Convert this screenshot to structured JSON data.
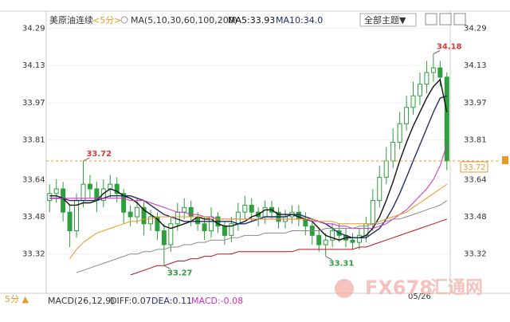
{
  "chart_data": {
    "type": "candlestick",
    "header": {
      "instrument": "美原油连续",
      "period": "<5分>",
      "ma_label": "MA(5,10,30,60,100,200)",
      "ma5": "MA5:33.93",
      "ma10": "MA10:34.0",
      "theme_button": "全部主题▼"
    },
    "footer": {
      "period": "5分 ▲",
      "macd_label": "MACD(26,12,9)",
      "diff": "DIFF:0.07",
      "dea": "DEA:0.11",
      "macd": "MACD:-0.08",
      "date": "05/26"
    },
    "watermark": {
      "brand": "FX678",
      "site": "汇通网"
    },
    "ylim": [
      33.23,
      34.35
    ],
    "yticks": [
      34.29,
      34.13,
      33.97,
      33.81,
      33.64,
      33.48,
      33.32
    ],
    "up_color": "#d43a3a",
    "down_color": "#2e9e3e",
    "open": [
      33.55,
      33.58,
      33.6,
      33.5,
      33.42,
      33.55,
      33.62,
      33.6,
      33.55,
      33.6,
      33.62,
      33.58,
      33.5,
      33.48,
      33.52,
      33.45,
      33.48,
      33.42,
      33.36,
      33.45,
      33.5,
      33.52,
      33.48,
      33.45,
      33.42,
      33.48,
      33.44,
      33.4,
      33.45,
      33.5,
      33.53,
      33.5,
      33.48,
      33.52,
      33.5,
      33.46,
      33.48,
      33.5,
      33.47,
      33.44,
      33.4,
      33.36,
      33.38,
      33.42,
      33.4,
      33.38,
      33.37,
      33.4,
      33.45,
      33.55,
      33.65,
      33.72,
      33.8,
      33.88,
      33.95,
      34.0,
      34.05,
      34.1,
      34.12,
      34.08
    ],
    "high": [
      33.62,
      33.64,
      33.63,
      33.53,
      33.58,
      33.72,
      33.66,
      33.63,
      33.64,
      33.66,
      33.65,
      33.6,
      33.53,
      33.56,
      33.55,
      33.51,
      33.5,
      33.45,
      33.48,
      33.54,
      33.56,
      33.55,
      33.5,
      33.48,
      33.52,
      33.5,
      33.46,
      33.48,
      33.54,
      33.57,
      33.56,
      33.52,
      33.55,
      33.55,
      33.52,
      33.51,
      33.53,
      33.53,
      33.5,
      33.47,
      33.43,
      33.41,
      33.45,
      33.45,
      33.43,
      33.41,
      33.43,
      33.48,
      33.6,
      33.7,
      33.78,
      33.86,
      33.93,
      34.0,
      34.06,
      34.1,
      34.15,
      34.18,
      34.15,
      34.1
    ],
    "low": [
      33.5,
      33.54,
      33.46,
      33.35,
      33.39,
      33.52,
      33.56,
      33.5,
      33.52,
      33.56,
      33.54,
      33.45,
      33.44,
      33.45,
      33.4,
      33.42,
      33.38,
      33.27,
      33.33,
      33.42,
      33.47,
      33.44,
      33.42,
      33.38,
      33.39,
      33.41,
      33.36,
      33.37,
      33.42,
      33.47,
      33.46,
      33.44,
      33.45,
      33.47,
      33.43,
      33.43,
      33.45,
      33.44,
      33.4,
      33.36,
      33.33,
      33.31,
      33.35,
      33.37,
      33.35,
      33.34,
      33.34,
      33.37,
      33.42,
      33.52,
      33.62,
      33.69,
      33.77,
      33.85,
      33.92,
      33.96,
      34.01,
      34.06,
      34.04,
      33.68
    ],
    "close": [
      33.58,
      33.6,
      33.5,
      33.42,
      33.55,
      33.62,
      33.6,
      33.55,
      33.6,
      33.62,
      33.58,
      33.5,
      33.48,
      33.52,
      33.45,
      33.48,
      33.42,
      33.36,
      33.45,
      33.5,
      33.52,
      33.48,
      33.45,
      33.42,
      33.48,
      33.44,
      33.4,
      33.45,
      33.5,
      33.53,
      33.5,
      33.48,
      33.52,
      33.5,
      33.46,
      33.48,
      33.5,
      33.47,
      33.44,
      33.4,
      33.36,
      33.38,
      33.42,
      33.4,
      33.38,
      33.37,
      33.4,
      33.45,
      33.55,
      33.65,
      33.72,
      33.8,
      33.88,
      33.95,
      34.0,
      34.05,
      34.1,
      34.12,
      34.08,
      33.72
    ],
    "series": [
      {
        "name": "MA5",
        "color": "#111111",
        "values": [
          33.57,
          33.57,
          33.56,
          33.53,
          33.53,
          33.54,
          33.54,
          33.55,
          33.58,
          33.6,
          33.59,
          33.57,
          33.56,
          33.54,
          33.51,
          33.49,
          33.47,
          33.44,
          33.43,
          33.44,
          33.45,
          33.46,
          33.48,
          33.47,
          33.47,
          33.45,
          33.44,
          33.44,
          33.45,
          33.46,
          33.48,
          33.49,
          33.51,
          33.51,
          33.49,
          33.49,
          33.49,
          33.48,
          33.47,
          33.46,
          33.43,
          33.4,
          33.39,
          33.38,
          33.39,
          33.39,
          33.39,
          33.4,
          33.43,
          33.48,
          33.55,
          33.63,
          33.72,
          33.8,
          33.87,
          33.93,
          33.99,
          34.04,
          34.07,
          33.93
        ]
      },
      {
        "name": "MA10",
        "color": "#1f2d6b",
        "values": [
          33.56,
          33.56,
          33.56,
          33.55,
          33.55,
          33.55,
          33.55,
          33.55,
          33.56,
          33.57,
          33.57,
          33.57,
          33.57,
          33.56,
          33.55,
          33.53,
          33.51,
          33.49,
          33.48,
          33.47,
          33.46,
          33.46,
          33.46,
          33.46,
          33.46,
          33.46,
          33.46,
          33.46,
          33.45,
          33.45,
          33.46,
          33.47,
          33.48,
          33.48,
          33.48,
          33.48,
          33.49,
          33.49,
          33.48,
          33.47,
          33.46,
          33.45,
          33.43,
          33.41,
          33.4,
          33.39,
          33.39,
          33.39,
          33.41,
          33.43,
          33.47,
          33.52,
          33.58,
          33.65,
          33.72,
          33.79,
          33.86,
          33.93,
          33.99,
          34.0
        ]
      },
      {
        "name": "MA30",
        "color": "#d02cc0",
        "values": [
          33.56,
          33.56,
          33.56,
          33.56,
          33.56,
          33.56,
          33.56,
          33.56,
          33.56,
          33.56,
          33.56,
          33.56,
          33.55,
          33.55,
          33.55,
          33.54,
          33.53,
          33.52,
          33.51,
          33.5,
          33.5,
          33.49,
          33.49,
          33.48,
          33.48,
          33.47,
          33.47,
          33.47,
          33.47,
          33.47,
          33.47,
          33.47,
          33.47,
          33.47,
          33.47,
          33.47,
          33.47,
          33.47,
          33.47,
          33.46,
          33.46,
          33.45,
          33.45,
          33.44,
          33.44,
          33.43,
          33.43,
          33.43,
          33.43,
          33.44,
          33.45,
          33.47,
          33.49,
          33.51,
          33.54,
          33.57,
          33.6,
          33.64,
          33.7,
          33.79
        ]
      },
      {
        "name": "MA60",
        "color": "#f0961e",
        "values": [
          null,
          null,
          null,
          33.3,
          33.34,
          33.37,
          33.39,
          33.41,
          33.42,
          33.43,
          33.44,
          33.45,
          33.46,
          33.46,
          33.47,
          33.47,
          33.48,
          33.48,
          33.48,
          33.48,
          33.48,
          33.48,
          33.48,
          33.48,
          33.47,
          33.47,
          33.47,
          33.47,
          33.47,
          33.47,
          33.47,
          33.47,
          33.47,
          33.47,
          33.47,
          33.47,
          33.47,
          33.47,
          33.47,
          33.47,
          33.46,
          33.46,
          33.46,
          33.45,
          33.45,
          33.45,
          33.45,
          33.45,
          33.45,
          33.46,
          33.47,
          33.48,
          33.49,
          33.5,
          33.52,
          33.54,
          33.56,
          33.58,
          33.6,
          33.62
        ]
      },
      {
        "name": "MA100",
        "color": "#8a8a8a",
        "values": [
          null,
          null,
          null,
          null,
          33.24,
          33.25,
          33.26,
          33.27,
          33.28,
          33.29,
          33.3,
          33.31,
          33.32,
          33.32,
          33.33,
          33.33,
          33.34,
          33.34,
          33.35,
          33.35,
          33.36,
          33.36,
          33.37,
          33.37,
          33.38,
          33.38,
          33.38,
          33.39,
          33.39,
          33.4,
          33.4,
          33.4,
          33.41,
          33.41,
          33.41,
          33.41,
          33.42,
          33.42,
          33.42,
          33.42,
          33.42,
          33.43,
          33.43,
          33.43,
          33.43,
          33.43,
          33.44,
          33.44,
          33.45,
          33.45,
          33.46,
          33.47,
          33.47,
          33.48,
          33.49,
          33.5,
          33.51,
          33.52,
          33.53,
          33.55
        ]
      },
      {
        "name": "MA200",
        "color": "#b3181c",
        "values": [
          null,
          null,
          null,
          null,
          null,
          null,
          null,
          null,
          null,
          null,
          null,
          null,
          33.23,
          33.24,
          33.25,
          33.26,
          33.27,
          33.27,
          33.28,
          33.29,
          33.29,
          33.3,
          33.3,
          33.31,
          33.31,
          33.32,
          33.32,
          33.32,
          33.33,
          33.33,
          33.33,
          33.33,
          33.33,
          33.33,
          33.33,
          33.33,
          33.33,
          33.34,
          33.34,
          33.34,
          33.34,
          33.34,
          33.34,
          33.34,
          33.34,
          33.34,
          33.35,
          33.35,
          33.36,
          33.37,
          33.38,
          33.39,
          33.4,
          33.41,
          33.42,
          33.43,
          33.44,
          33.45,
          33.46,
          33.47
        ]
      }
    ]
  }
}
